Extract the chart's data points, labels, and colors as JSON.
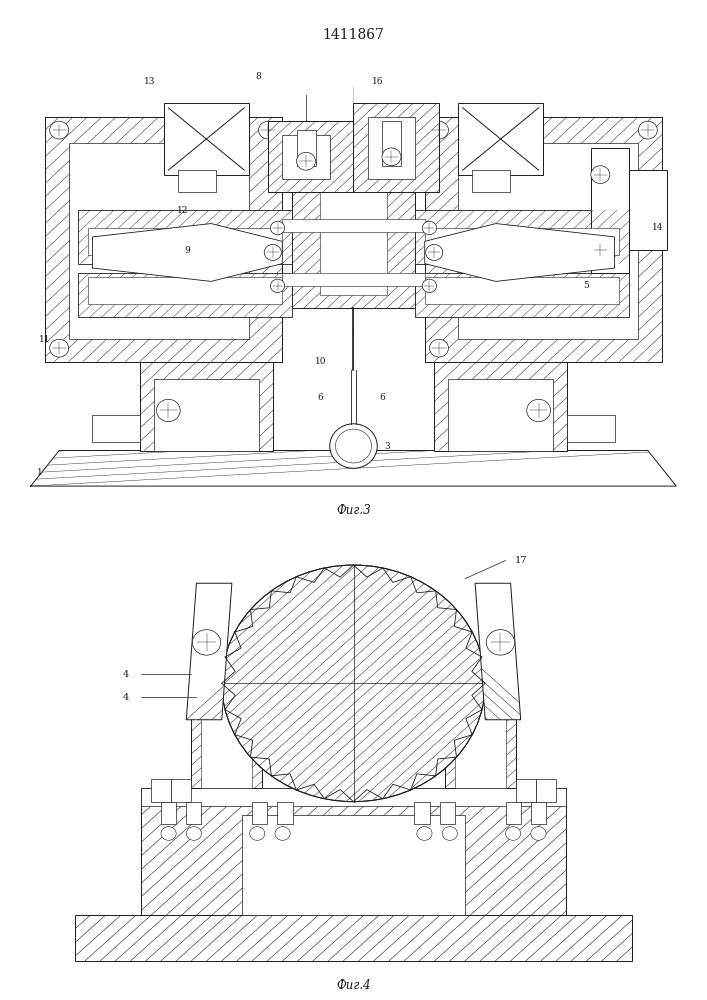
{
  "title": "1411867",
  "title_fontsize": 10,
  "fig3_caption": "Фиг.3",
  "fig4_caption": "Фиг.4",
  "bg_color": "#ffffff",
  "line_color": "#1a1a1a",
  "fig_width": 7.07,
  "fig_height": 10.0
}
